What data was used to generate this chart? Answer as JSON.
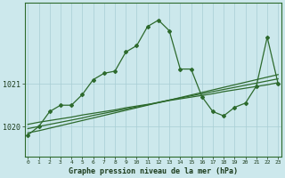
{
  "title": "Graphe pression niveau de la mer (hPa)",
  "bg_color": "#cce8ec",
  "grid_color": "#a8cdd4",
  "line_color": "#2d6a2d",
  "x_labels": [
    "0",
    "1",
    "2",
    "3",
    "4",
    "5",
    "6",
    "7",
    "8",
    "9",
    "10",
    "11",
    "12",
    "13",
    "14",
    "15",
    "16",
    "17",
    "18",
    "19",
    "20",
    "21",
    "22",
    "23"
  ],
  "yticks": [
    1020,
    1021
  ],
  "ylim": [
    1019.3,
    1022.9
  ],
  "xlim": [
    -0.3,
    23.3
  ],
  "main_series": [
    1019.8,
    1020.0,
    1020.35,
    1020.5,
    1020.5,
    1020.75,
    1021.1,
    1021.25,
    1021.3,
    1021.75,
    1021.9,
    1022.35,
    1022.5,
    1022.25,
    1021.35,
    1021.35,
    1020.7,
    1020.35,
    1020.25,
    1020.45,
    1020.55,
    1020.95,
    1022.1,
    1021.0
  ],
  "trend1": [
    1019.85,
    1019.9,
    1019.96,
    1020.02,
    1020.08,
    1020.14,
    1020.2,
    1020.26,
    1020.32,
    1020.38,
    1020.44,
    1020.5,
    1020.56,
    1020.62,
    1020.68,
    1020.74,
    1020.8,
    1020.86,
    1020.92,
    1020.98,
    1021.04,
    1021.1,
    1021.16,
    1021.22
  ],
  "trend2": [
    1019.95,
    1020.0,
    1020.05,
    1020.1,
    1020.15,
    1020.2,
    1020.26,
    1020.31,
    1020.36,
    1020.41,
    1020.46,
    1020.51,
    1020.57,
    1020.62,
    1020.67,
    1020.72,
    1020.77,
    1020.82,
    1020.87,
    1020.92,
    1020.97,
    1021.02,
    1021.07,
    1021.12
  ],
  "trend3": [
    1020.05,
    1020.1,
    1020.14,
    1020.18,
    1020.22,
    1020.27,
    1020.31,
    1020.35,
    1020.39,
    1020.44,
    1020.48,
    1020.52,
    1020.56,
    1020.61,
    1020.65,
    1020.69,
    1020.73,
    1020.77,
    1020.82,
    1020.86,
    1020.9,
    1020.94,
    1020.98,
    1021.03
  ],
  "ylabel_1020_y": 1020,
  "ylabel_1021_y": 1021,
  "title_fontsize": 6.0,
  "tick_fontsize": 4.5,
  "ytick_fontsize": 6.0
}
